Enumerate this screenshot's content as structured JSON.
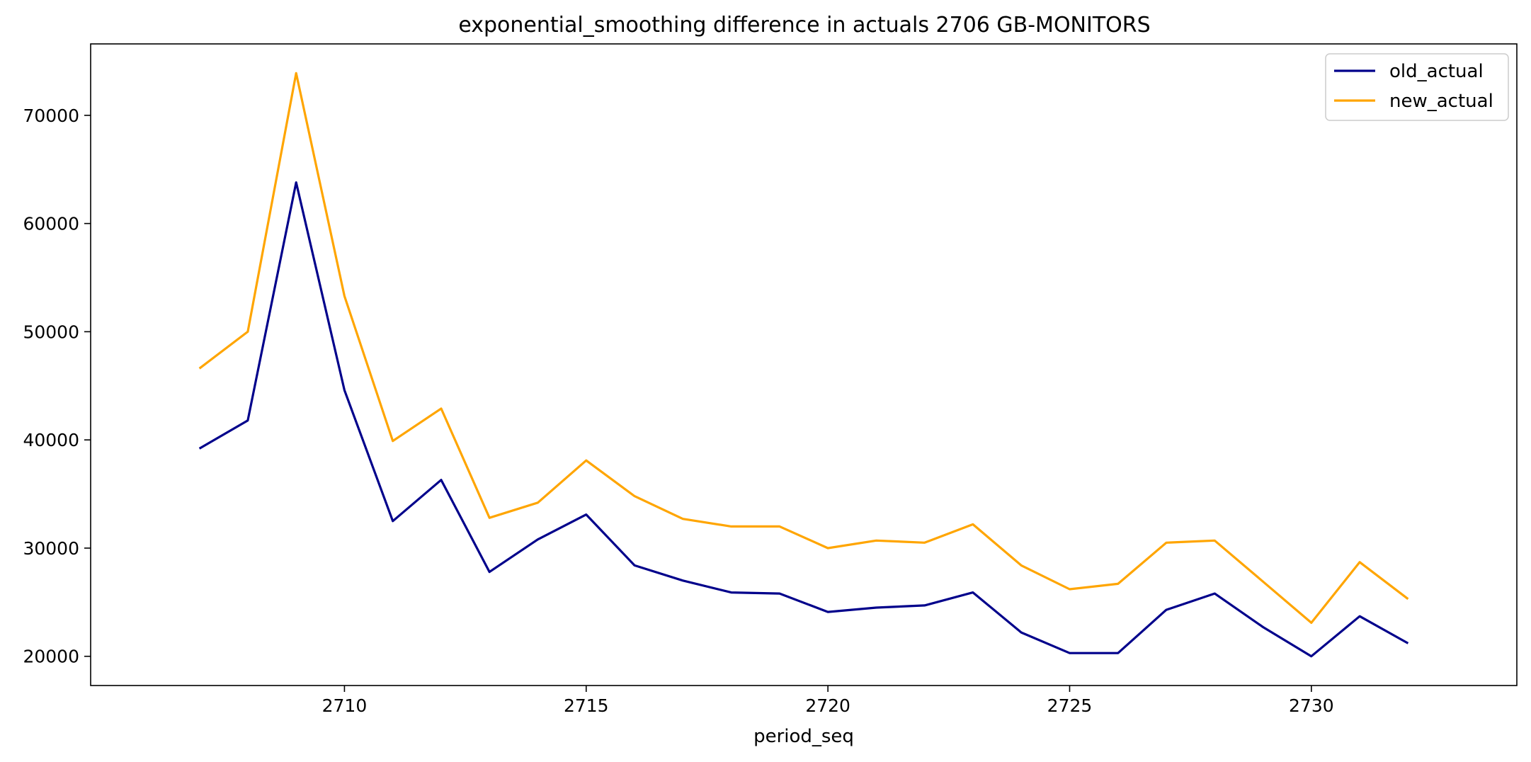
{
  "chart_data": {
    "type": "line",
    "title": "exponential_smoothing difference in actuals 2706 GB-MONITORS",
    "xlabel": "period_seq",
    "ylabel": "",
    "x": [
      2707,
      2708,
      2709,
      2710,
      2711,
      2712,
      2713,
      2714,
      2715,
      2716,
      2717,
      2718,
      2719,
      2720,
      2721,
      2722,
      2723,
      2724,
      2725,
      2726,
      2727,
      2728,
      2729,
      2730,
      2731,
      2732
    ],
    "series": [
      {
        "name": "old_actual",
        "color": "#00008b",
        "values": [
          39200,
          41800,
          63800,
          44600,
          32500,
          36300,
          27800,
          30800,
          33100,
          28400,
          27000,
          25900,
          25800,
          24100,
          24500,
          24700,
          25900,
          22200,
          20300,
          20300,
          24300,
          25800,
          22700,
          20000,
          23700,
          21200
        ]
      },
      {
        "name": "new_actual",
        "color": "#ffa500",
        "values": [
          46600,
          50000,
          73900,
          53300,
          39900,
          42900,
          32800,
          34200,
          38100,
          34800,
          32700,
          32000,
          32000,
          30000,
          30700,
          30500,
          32200,
          28400,
          26200,
          26700,
          30500,
          30700,
          26900,
          23100,
          28700,
          25300
        ]
      }
    ],
    "xlim": [
      2704.75,
      2734.25
    ],
    "ylim": [
      17300,
      76600
    ],
    "xticks": [
      2710,
      2715,
      2720,
      2725,
      2730
    ],
    "yticks": [
      20000,
      30000,
      40000,
      50000,
      60000,
      70000
    ],
    "grid": false,
    "legend_position": "top-right"
  }
}
